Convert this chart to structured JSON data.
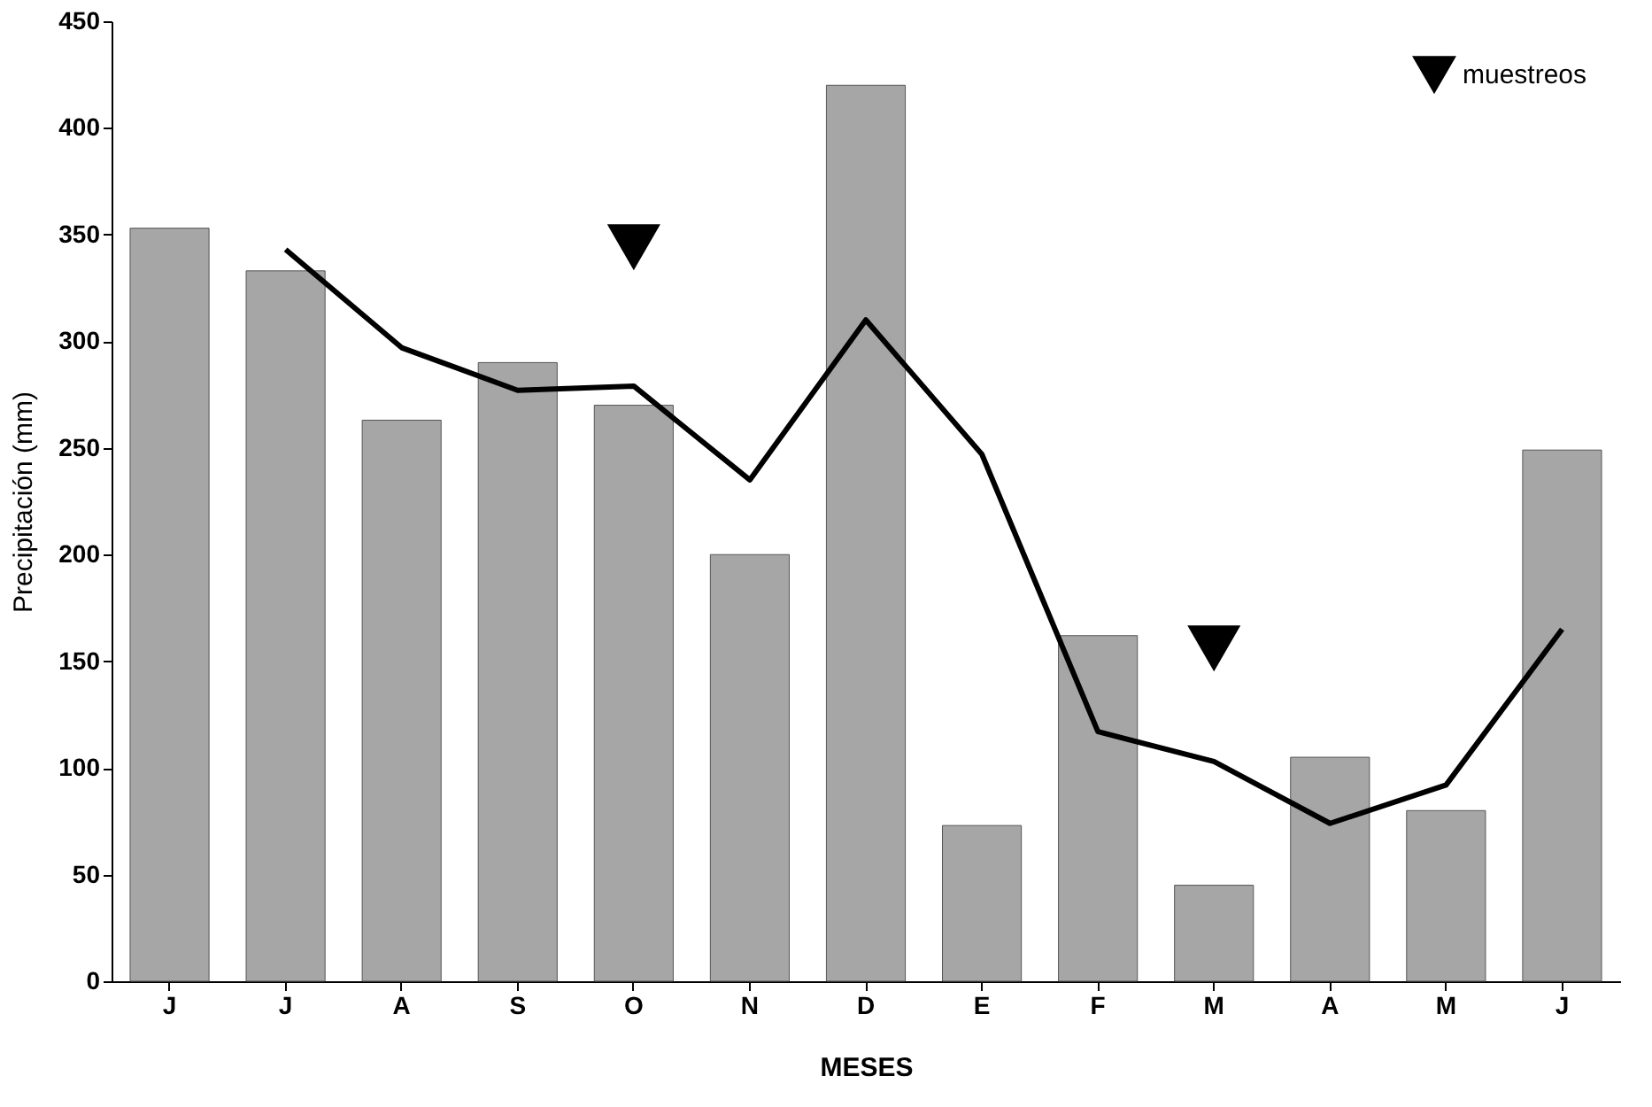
{
  "chart_data": {
    "type": "bar",
    "xlabel": "MESES",
    "ylabel": "Precipitación (mm)",
    "categories": [
      "J",
      "J",
      "A",
      "S",
      "O",
      "N",
      "D",
      "E",
      "F",
      "M",
      "A",
      "M",
      "J"
    ],
    "series": [
      {
        "color": "#a6a6a6",
        "values": [
          353,
          333,
          263,
          290,
          270,
          200,
          420,
          73,
          162,
          45,
          105,
          80,
          249
        ]
      },
      {
        "type": "line",
        "color": "#000000",
        "marker": "none",
        "line_style": "solid",
        "values": [
          null,
          343,
          297,
          277,
          279,
          235,
          310,
          247,
          117,
          103,
          74,
          92,
          165
        ]
      },
      {
        "type": "scatter",
        "name": "muestreos",
        "color": "#000000",
        "marker": "triangle",
        "values": [
          null,
          null,
          null,
          null,
          344,
          null,
          null,
          null,
          null,
          156,
          null,
          null,
          null
        ]
      }
    ],
    "ylim": [
      0,
      450
    ],
    "yticks": [
      0,
      50,
      100,
      150,
      200,
      250,
      300,
      350,
      400,
      450
    ],
    "grid": false,
    "legend": "top right"
  }
}
